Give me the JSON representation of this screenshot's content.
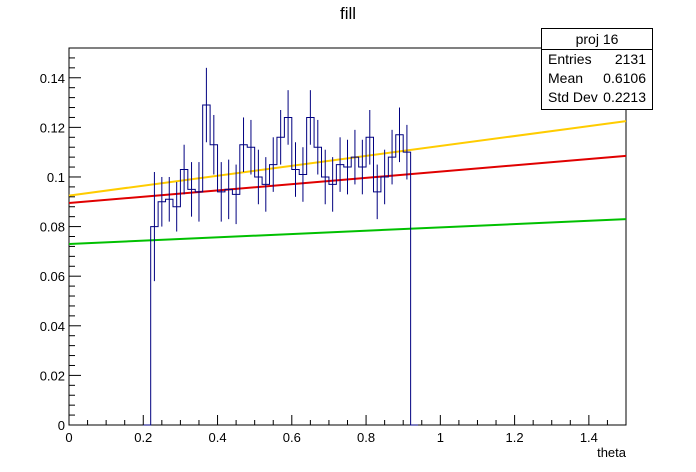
{
  "chart_data": {
    "type": "histogram",
    "title": "fill",
    "xlabel": "theta",
    "ylabel": "",
    "xlim": [
      0,
      1.5
    ],
    "ylim": [
      0,
      0.152
    ],
    "x_ticks": [
      "0",
      "0.2",
      "0.4",
      "0.6",
      "0.8",
      "1",
      "1.2",
      "1.4"
    ],
    "y_ticks": [
      "0",
      "0.02",
      "0.04",
      "0.06",
      "0.08",
      "0.1",
      "0.12",
      "0.14"
    ],
    "bin_width": 0.02,
    "bins": [
      {
        "x0": 0.2,
        "y": 0.0,
        "err": 0.0
      },
      {
        "x0": 0.22,
        "y": 0.08,
        "err": 0.022
      },
      {
        "x0": 0.24,
        "y": 0.09,
        "err": 0.01
      },
      {
        "x0": 0.26,
        "y": 0.091,
        "err": 0.009
      },
      {
        "x0": 0.28,
        "y": 0.088,
        "err": 0.01
      },
      {
        "x0": 0.3,
        "y": 0.103,
        "err": 0.01
      },
      {
        "x0": 0.32,
        "y": 0.095,
        "err": 0.011
      },
      {
        "x0": 0.34,
        "y": 0.094,
        "err": 0.012
      },
      {
        "x0": 0.36,
        "y": 0.129,
        "err": 0.015
      },
      {
        "x0": 0.38,
        "y": 0.113,
        "err": 0.012
      },
      {
        "x0": 0.4,
        "y": 0.094,
        "err": 0.012
      },
      {
        "x0": 0.42,
        "y": 0.095,
        "err": 0.012
      },
      {
        "x0": 0.44,
        "y": 0.093,
        "err": 0.012
      },
      {
        "x0": 0.46,
        "y": 0.113,
        "err": 0.011
      },
      {
        "x0": 0.48,
        "y": 0.112,
        "err": 0.011
      },
      {
        "x0": 0.5,
        "y": 0.1,
        "err": 0.011
      },
      {
        "x0": 0.52,
        "y": 0.097,
        "err": 0.011
      },
      {
        "x0": 0.54,
        "y": 0.105,
        "err": 0.011
      },
      {
        "x0": 0.56,
        "y": 0.116,
        "err": 0.011
      },
      {
        "x0": 0.58,
        "y": 0.124,
        "err": 0.011
      },
      {
        "x0": 0.6,
        "y": 0.103,
        "err": 0.011
      },
      {
        "x0": 0.62,
        "y": 0.101,
        "err": 0.011
      },
      {
        "x0": 0.64,
        "y": 0.124,
        "err": 0.011
      },
      {
        "x0": 0.66,
        "y": 0.112,
        "err": 0.011
      },
      {
        "x0": 0.68,
        "y": 0.1,
        "err": 0.011
      },
      {
        "x0": 0.7,
        "y": 0.097,
        "err": 0.011
      },
      {
        "x0": 0.72,
        "y": 0.105,
        "err": 0.011
      },
      {
        "x0": 0.74,
        "y": 0.104,
        "err": 0.011
      },
      {
        "x0": 0.76,
        "y": 0.108,
        "err": 0.011
      },
      {
        "x0": 0.78,
        "y": 0.104,
        "err": 0.011
      },
      {
        "x0": 0.8,
        "y": 0.116,
        "err": 0.011
      },
      {
        "x0": 0.82,
        "y": 0.094,
        "err": 0.011
      },
      {
        "x0": 0.84,
        "y": 0.1,
        "err": 0.011
      },
      {
        "x0": 0.86,
        "y": 0.108,
        "err": 0.011
      },
      {
        "x0": 0.88,
        "y": 0.117,
        "err": 0.011
      },
      {
        "x0": 0.9,
        "y": 0.11,
        "err": 0.011
      },
      {
        "x0": 0.92,
        "y": 0.0,
        "err": 0.0
      }
    ],
    "lines": [
      {
        "color": "#ffcc00",
        "x": [
          0,
          1.5
        ],
        "y": [
          0.0925,
          0.1225
        ]
      },
      {
        "color": "#e00000",
        "x": [
          0,
          1.5
        ],
        "y": [
          0.0895,
          0.1085
        ]
      },
      {
        "color": "#00c000",
        "x": [
          0,
          1.5
        ],
        "y": [
          0.073,
          0.083
        ]
      }
    ],
    "stats": {
      "name": "proj 16",
      "rows": [
        {
          "key": "Entries",
          "value": "2131"
        },
        {
          "key": "Mean",
          "value": "0.6106"
        },
        {
          "key": "Std Dev",
          "value": "0.2213"
        }
      ]
    },
    "hist_color": "#000080"
  }
}
